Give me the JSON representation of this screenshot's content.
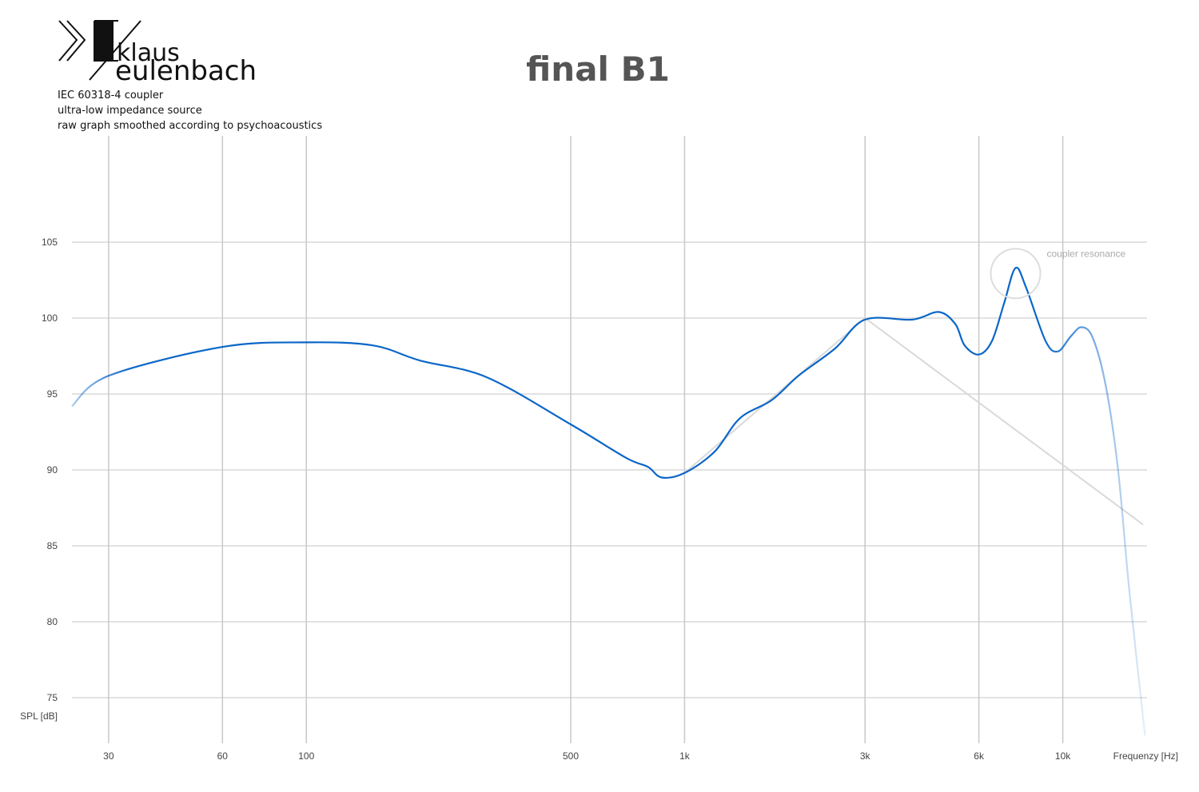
{
  "header": {
    "logo_top": "klaus",
    "logo_bottom": "eulenbach",
    "notes": [
      "IEC 60318-4 coupler",
      "ultra-low impedance source",
      "raw graph smoothed according to psychoacoustics"
    ]
  },
  "chart_data": {
    "type": "line",
    "title": "final B1",
    "xlabel": "Frequenzy [Hz]",
    "ylabel": "SPL [dB]",
    "xscale": "log",
    "grid": true,
    "xlim": [
      24,
      16700
    ],
    "ylim": [
      72,
      112
    ],
    "xticks": [
      30,
      60,
      100,
      500,
      {
        "value": 1000,
        "label": "1k"
      },
      {
        "value": 3000,
        "label": "3k"
      },
      {
        "value": 6000,
        "label": "6k"
      },
      {
        "value": 10000,
        "label": "10k"
      }
    ],
    "yticks": [
      75,
      80,
      85,
      90,
      95,
      100,
      105
    ],
    "annotation": {
      "text": "coupler resonance",
      "x": 7500,
      "y": 103.3
    },
    "series": [
      {
        "color": "#d9d9d9",
        "x": [
          1000,
          3000,
          16300
        ],
        "values": [
          89.8,
          100,
          86.4
        ]
      },
      {
        "color": "#0a66c8",
        "x": [
          24,
          30,
          60,
          100,
          150,
          200,
          300,
          500,
          700,
          800,
          870,
          1000,
          1200,
          1400,
          1700,
          2000,
          2500,
          3000,
          4000,
          4700,
          5200,
          5500,
          6000,
          6500,
          7000,
          7500,
          8000,
          9000,
          9700,
          10500,
          11200,
          12000,
          13000,
          14000,
          15000,
          16500
        ],
        "values": [
          94.2,
          96.2,
          98.1,
          98.4,
          98.2,
          97.2,
          96.1,
          93.0,
          90.8,
          90.2,
          89.5,
          89.8,
          91.2,
          93.4,
          94.6,
          96.2,
          98.0,
          99.9,
          99.9,
          100.4,
          99.6,
          98.2,
          97.6,
          98.5,
          101.0,
          103.3,
          102.0,
          98.5,
          97.8,
          98.8,
          99.4,
          98.7,
          95.5,
          90.0,
          82.0,
          72.5
        ]
      }
    ]
  }
}
